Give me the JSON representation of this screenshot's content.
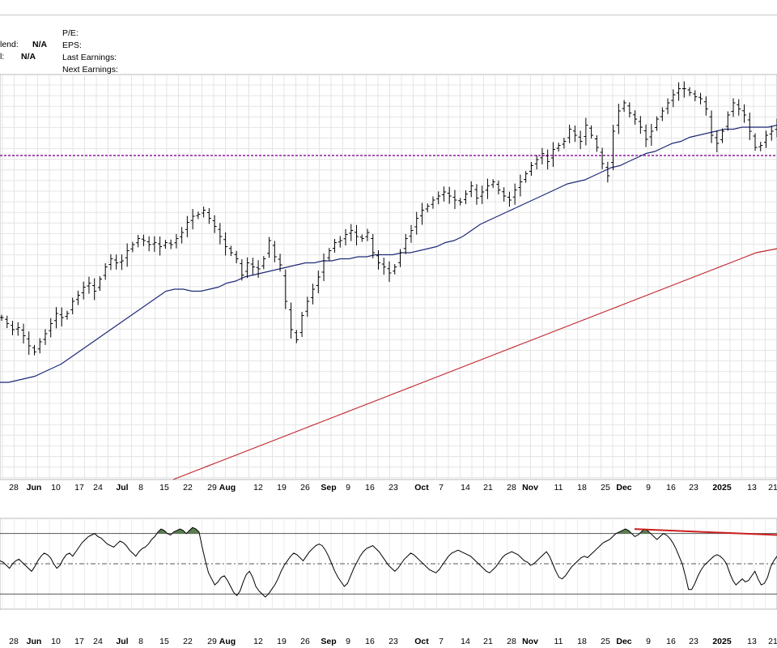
{
  "header": {
    "left_rows": [
      {
        "label": "lend:",
        "value": "N/A"
      },
      {
        "label": "l:",
        "value": "N/A"
      }
    ],
    "right_rows": [
      "P/E:",
      "EPS:",
      "Last Earnings:",
      "Next Earnings:"
    ]
  },
  "chart_data": [
    {
      "type": "ohlc",
      "title": "",
      "x_tick_labels": [
        "28",
        "Jun",
        "10",
        "17",
        "24",
        "Jul",
        "8",
        "15",
        "22",
        "29",
        "Aug",
        "12",
        "19",
        "26",
        "Sep",
        "9",
        "16",
        "23",
        "Oct",
        "7",
        "14",
        "21",
        "28",
        "Nov",
        "11",
        "18",
        "25",
        "Dec",
        "9",
        "16",
        "23",
        "2025",
        "13",
        "21"
      ],
      "bold_tick_labels": [
        "Jun",
        "Jul",
        "Aug",
        "Sep",
        "Oct",
        "Nov",
        "Dec",
        "2025"
      ],
      "grid": true,
      "series": [
        {
          "name": "price",
          "kind": "ohlc-bars",
          "color": "#000000",
          "values": [
            520,
            517,
            514,
            515,
            511,
            506,
            503,
            508,
            512,
            517,
            522,
            520,
            522,
            528,
            531,
            535,
            537,
            533,
            539,
            545,
            549,
            547,
            548,
            553,
            556,
            559,
            558,
            556,
            557,
            555,
            557,
            556,
            559,
            562,
            567,
            570,
            571,
            573,
            569,
            565,
            560,
            555,
            552,
            549,
            541,
            547,
            545,
            544,
            549,
            558,
            550,
            546,
            528,
            514,
            509,
            521,
            528,
            534,
            540,
            548,
            553,
            557,
            558,
            561,
            563,
            560,
            559,
            562,
            552,
            547,
            545,
            542,
            545,
            552,
            559,
            563,
            569,
            573,
            575,
            578,
            580,
            582,
            580,
            578,
            577,
            581,
            585,
            579,
            582,
            585,
            587,
            583,
            580,
            578,
            583,
            587,
            591,
            595,
            598,
            601,
            597,
            603,
            605,
            607,
            613,
            610,
            607,
            615,
            610,
            604,
            596,
            590,
            612,
            622,
            626,
            621,
            618,
            614,
            608,
            612,
            618,
            622,
            626,
            630,
            633,
            633,
            631,
            629,
            628,
            623,
            610,
            606,
            612,
            620,
            626,
            623,
            620,
            612,
            604,
            605,
            610,
            612,
            615
          ]
        },
        {
          "name": "",
          "kind": "moving-average",
          "color": "#1f2a78",
          "values": [
            488,
            488,
            489,
            490,
            491,
            493,
            495,
            497,
            500,
            503,
            506,
            509,
            512,
            515,
            518,
            521,
            524,
            527,
            530,
            533,
            534,
            534,
            533,
            533,
            534,
            535,
            537,
            538,
            540,
            541,
            542,
            543,
            544,
            545,
            546,
            547,
            547,
            548,
            548,
            549,
            549,
            550,
            550,
            551,
            551,
            551,
            552,
            552,
            553,
            554,
            555,
            557,
            558,
            560,
            563,
            566,
            568,
            570,
            572,
            574,
            576,
            578,
            580,
            582,
            584,
            586,
            587,
            588,
            590,
            592,
            594,
            595,
            597,
            599,
            601,
            602,
            604,
            606,
            607,
            609,
            610,
            611,
            612,
            613,
            613,
            614,
            614,
            614,
            614,
            615
          ]
        },
        {
          "name": "",
          "kind": "moving-average",
          "color": "#c0262d",
          "values": [
            440,
            442,
            444,
            446,
            448,
            450,
            452,
            454,
            456,
            458,
            460,
            462,
            464,
            466,
            468,
            470,
            472,
            474,
            476,
            478,
            480,
            482,
            484,
            486,
            488,
            490,
            492,
            494,
            496,
            498,
            500,
            502,
            504,
            506,
            508,
            510,
            512,
            514,
            516,
            518,
            520,
            522,
            524,
            526,
            528,
            530,
            532,
            534,
            536,
            538,
            540,
            542,
            544,
            546,
            548,
            550,
            552,
            553,
            554
          ]
        }
      ],
      "reference_line": {
        "style": "dotted",
        "color": "#8b1a9b",
        "value": 600
      },
      "ylim": [
        440,
        640
      ]
    },
    {
      "type": "line",
      "title": "",
      "series": [
        {
          "name": "",
          "color": "#000000",
          "values": [
            52,
            51,
            49,
            47,
            50,
            52,
            53,
            51,
            49,
            47,
            45,
            48,
            52,
            55,
            57,
            56,
            54,
            50,
            47,
            49,
            53,
            56,
            57,
            55,
            58,
            61,
            64,
            66,
            68,
            69,
            70,
            68,
            67,
            65,
            63,
            62,
            61,
            63,
            65,
            64,
            62,
            59,
            57,
            55,
            58,
            60,
            61,
            63,
            66,
            68,
            71,
            73,
            72,
            70,
            69,
            71,
            72,
            73,
            72,
            70,
            72,
            74,
            73,
            71,
            61,
            52,
            44,
            40,
            36,
            38,
            41,
            42,
            39,
            35,
            31,
            29,
            32,
            38,
            43,
            45,
            41,
            35,
            32,
            30,
            28,
            30,
            33,
            36,
            40,
            45,
            49,
            52,
            55,
            57,
            56,
            54,
            52,
            55,
            58,
            60,
            62,
            63,
            62,
            59,
            55,
            50,
            45,
            41,
            38,
            35,
            37,
            42,
            47,
            51,
            55,
            58,
            60,
            61,
            62,
            60,
            58,
            55,
            52,
            49,
            47,
            45,
            47,
            50,
            53,
            55,
            57,
            56,
            54,
            52,
            50,
            48,
            46,
            45,
            44,
            46,
            49,
            52,
            55,
            57,
            58,
            59,
            58,
            57,
            56,
            55,
            53,
            51,
            49,
            47,
            45,
            44,
            46,
            48,
            51,
            54,
            56,
            57,
            58,
            57,
            56,
            54,
            52,
            51,
            49,
            50,
            52,
            54,
            56,
            58,
            55,
            50,
            45,
            41,
            40,
            42,
            45,
            48,
            50,
            52,
            54,
            55,
            54,
            56,
            58,
            60,
            62,
            64,
            65,
            66,
            68,
            70,
            71,
            72,
            73,
            72,
            70,
            68,
            69,
            71,
            73,
            72,
            70,
            68,
            66,
            68,
            70,
            69,
            67,
            64,
            60,
            55,
            50,
            42,
            33,
            33,
            37,
            42,
            46,
            49,
            51,
            53,
            55,
            56,
            55,
            53,
            50,
            44,
            39,
            36,
            38,
            40,
            38,
            39,
            42,
            45,
            40,
            36,
            37,
            41,
            48,
            52,
            55
          ]
        },
        {
          "name": "",
          "kind": "trendline",
          "color": "#cc1f1f",
          "values": [
            73,
            69
          ]
        }
      ],
      "reference_lines": [
        70,
        50,
        30
      ],
      "overbought_fill": {
        "threshold": 70,
        "color": "#5a7d52"
      },
      "ylim": [
        20,
        80
      ],
      "x_tick_labels": [
        "28",
        "Jun",
        "10",
        "17",
        "24",
        "Jul",
        "8",
        "15",
        "22",
        "29",
        "Aug",
        "12",
        "19",
        "26",
        "Sep",
        "9",
        "16",
        "23",
        "Oct",
        "7",
        "14",
        "21",
        "28",
        "Nov",
        "11",
        "18",
        "25",
        "Dec",
        "9",
        "16",
        "23",
        "2025",
        "13",
        "21"
      ]
    }
  ]
}
